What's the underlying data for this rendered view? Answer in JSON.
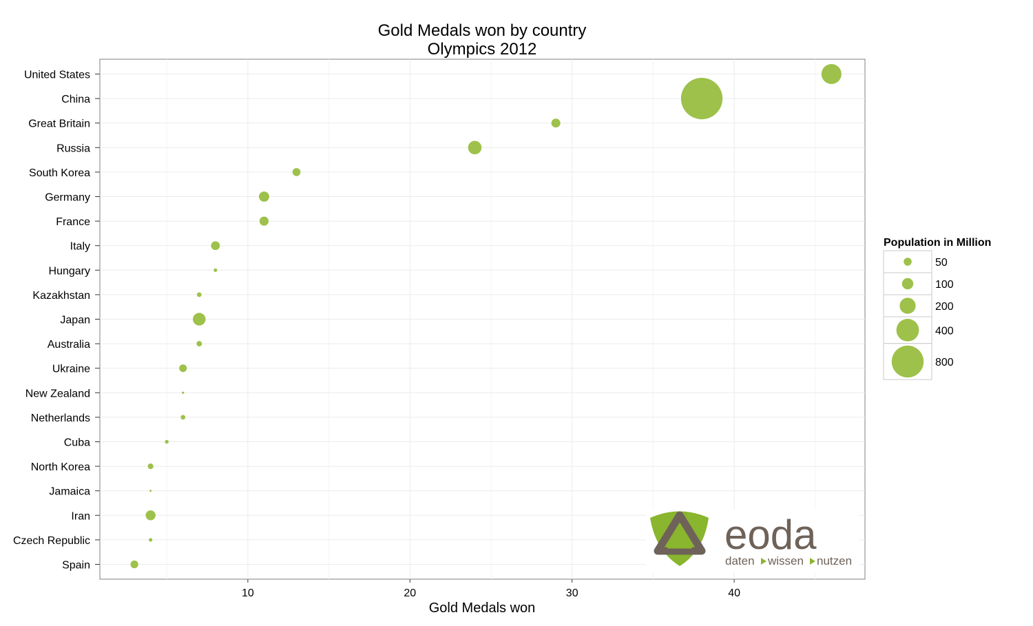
{
  "chart_data": {
    "type": "scatter",
    "title": "Gold Medals won by country",
    "subtitle": "Olympics 2012",
    "xlabel": "Gold Medals won",
    "ylabel": "",
    "xlim": [
      1,
      48
    ],
    "xticks": [
      10,
      20,
      30,
      40
    ],
    "grid": true,
    "point_color": "#9dc14a",
    "categories": [
      "United States",
      "China",
      "Great Britain",
      "Russia",
      "South Korea",
      "Germany",
      "France",
      "Italy",
      "Hungary",
      "Kazakhstan",
      "Japan",
      "Australia",
      "Ukraine",
      "New Zealand",
      "Netherlands",
      "Cuba",
      "North Korea",
      "Jamaica",
      "Iran",
      "Czech Republic",
      "Spain"
    ],
    "gold_medals": [
      46,
      38,
      29,
      24,
      13,
      11,
      11,
      8,
      8,
      7,
      7,
      7,
      6,
      6,
      6,
      5,
      4,
      4,
      4,
      4,
      3
    ],
    "population_million": [
      314,
      1350,
      63,
      143,
      50,
      82,
      65,
      60,
      10,
      17,
      127,
      23,
      45,
      4,
      17,
      11,
      25,
      3,
      77,
      10,
      47
    ],
    "legend": {
      "title": "Population in Million",
      "position": "right",
      "sizes": [
        50,
        100,
        200,
        400,
        800
      ]
    }
  },
  "logo": {
    "brand": "eoda",
    "tagline_words": [
      "daten",
      "wissen",
      "nutzen"
    ],
    "colors": {
      "green": "#8ab52e",
      "brown": "#6e6259"
    }
  }
}
